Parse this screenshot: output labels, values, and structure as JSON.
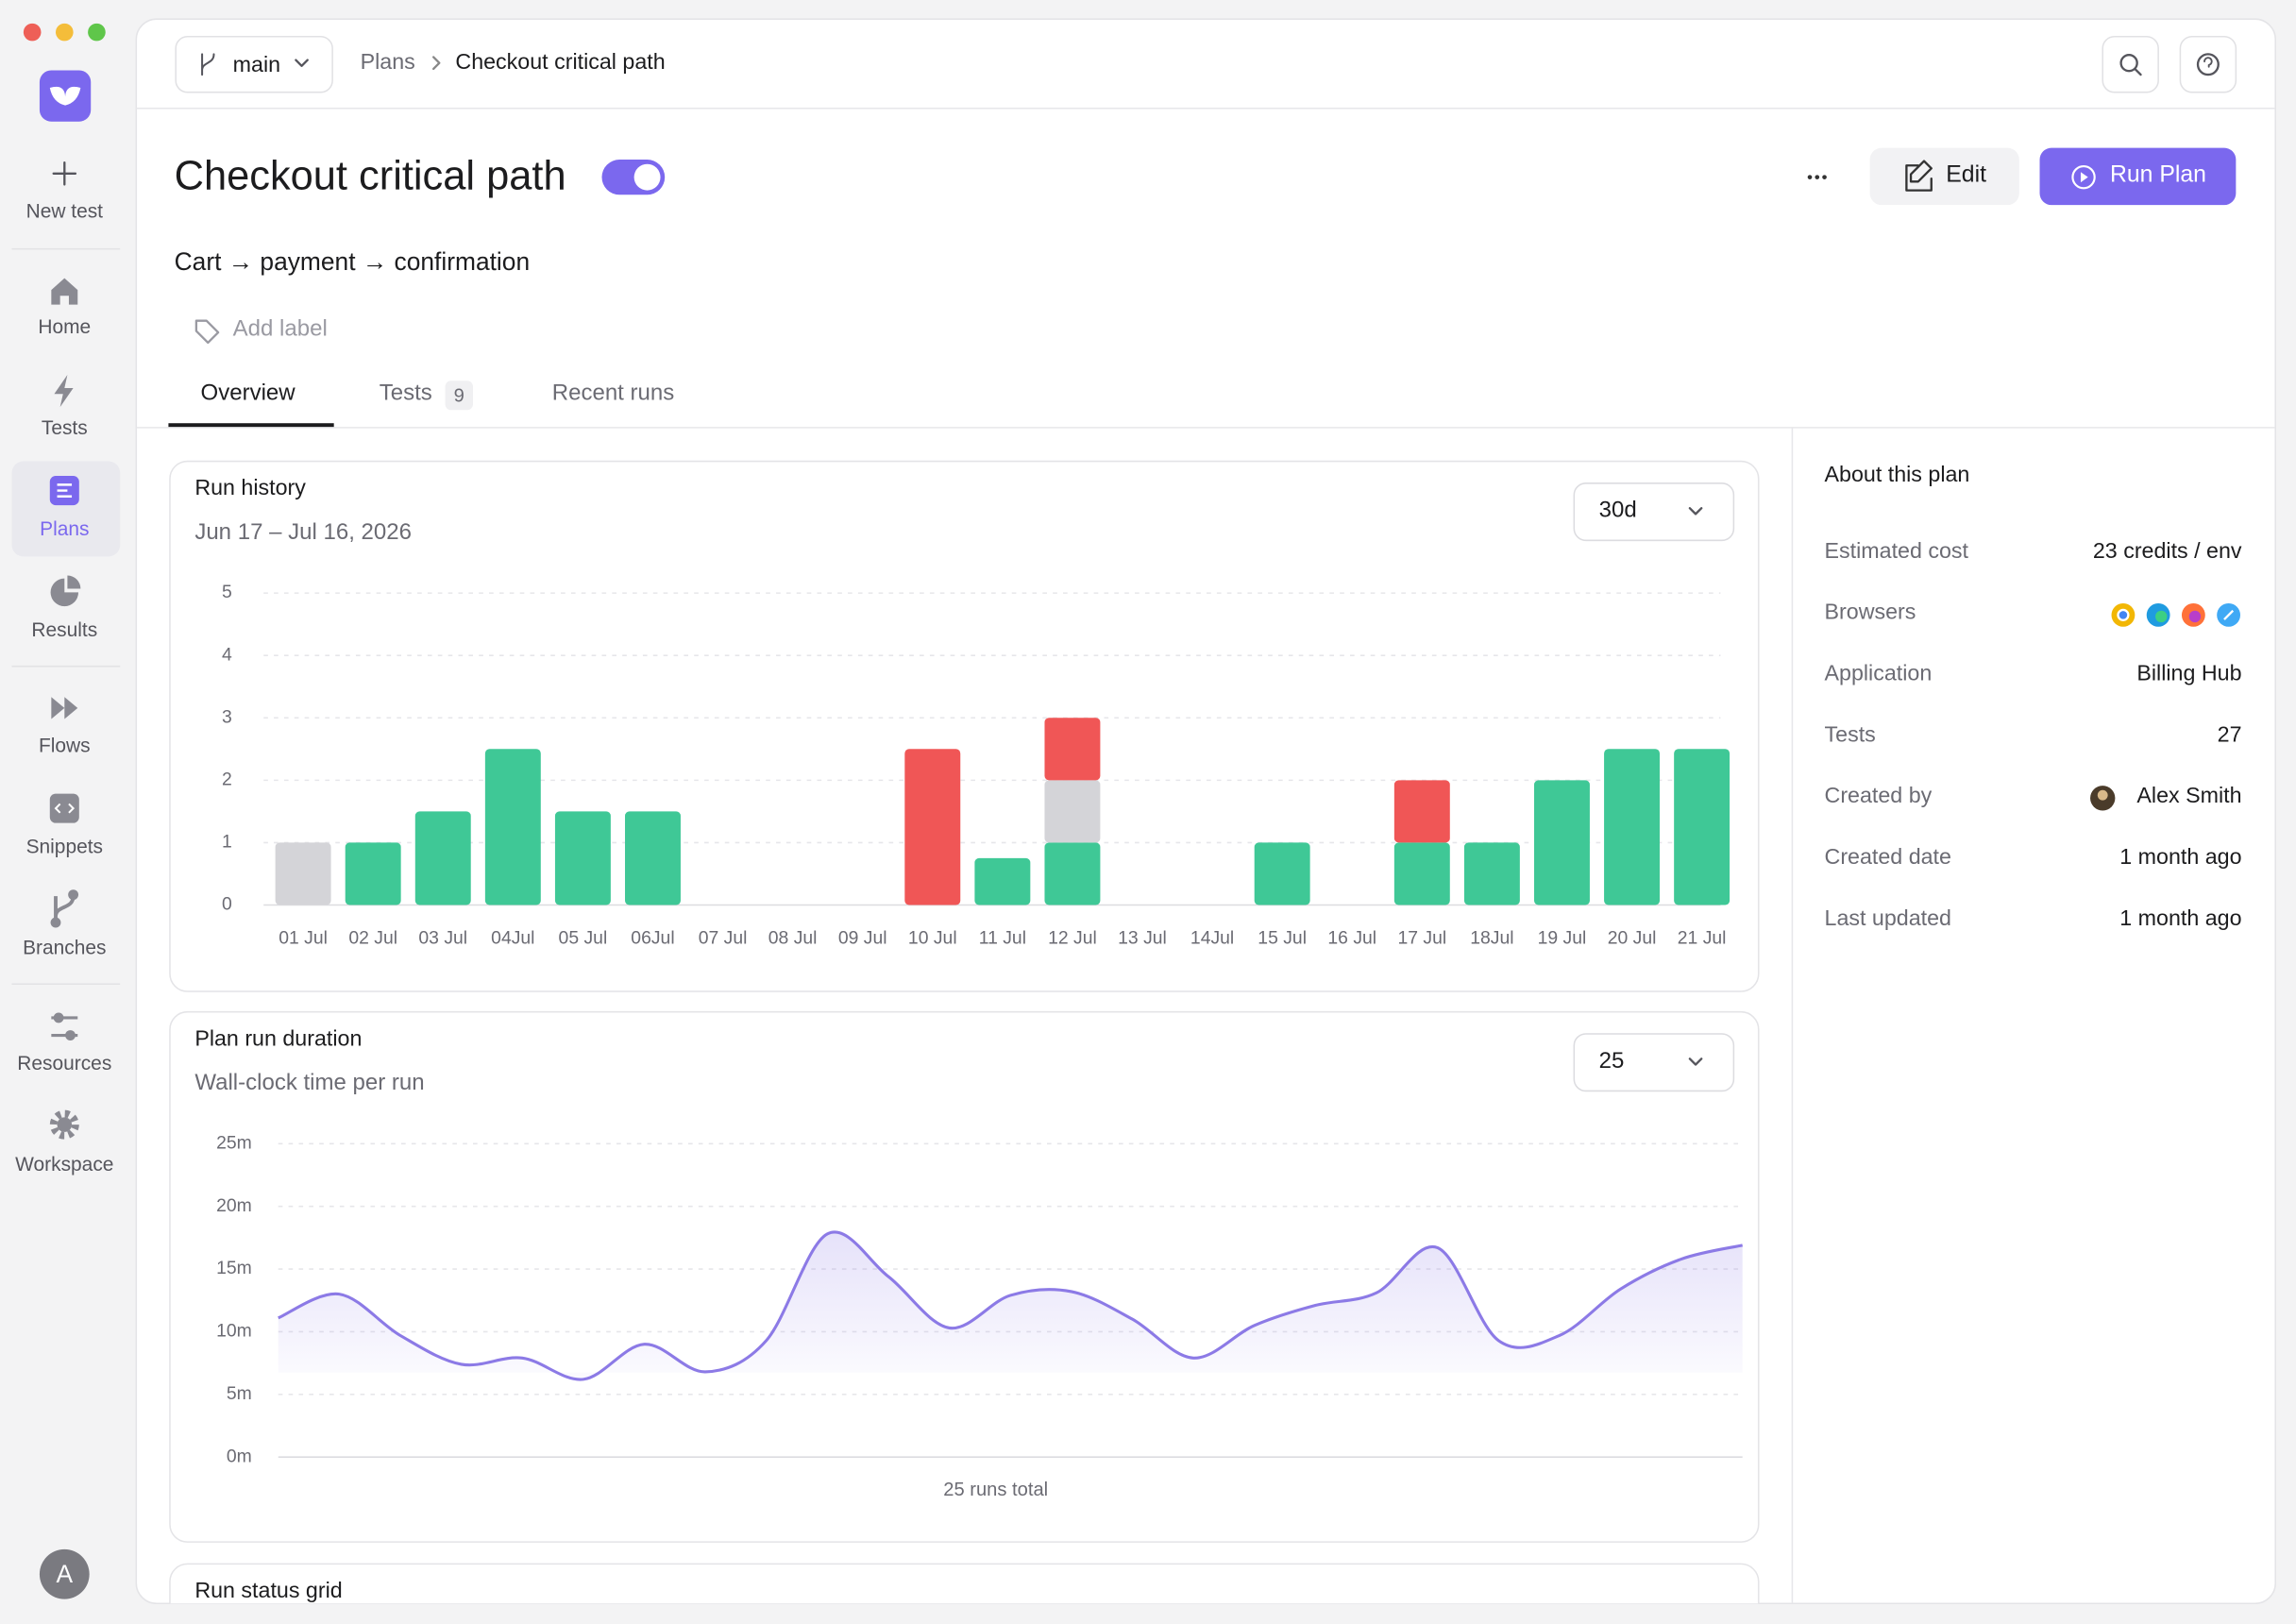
{
  "sidebar": {
    "items": [
      {
        "label": "New test"
      },
      {
        "label": "Home"
      },
      {
        "label": "Tests"
      },
      {
        "label": "Plans"
      },
      {
        "label": "Results"
      },
      {
        "label": "Flows"
      },
      {
        "label": "Snippets"
      },
      {
        "label": "Branches"
      },
      {
        "label": "Resources"
      },
      {
        "label": "Workspace"
      }
    ],
    "avatar": "A"
  },
  "topbar": {
    "branch": "main",
    "breadcrumb": [
      "Plans",
      "Checkout critical path"
    ]
  },
  "header": {
    "title": "Checkout critical path",
    "description": "Cart → payment → confirmation",
    "add_label": "Add label",
    "edit": "Edit",
    "run": "Run Plan"
  },
  "tabs": [
    {
      "label": "Overview"
    },
    {
      "label": "Tests",
      "count": 9
    },
    {
      "label": "Recent runs"
    }
  ],
  "about": {
    "title": "About this plan",
    "rows": [
      {
        "label": "Estimated cost",
        "value": "23 credits / env"
      },
      {
        "label": "Browsers"
      },
      {
        "label": "Application",
        "value": "Billing Hub"
      },
      {
        "label": "Tests",
        "value": "27"
      },
      {
        "label": "Created by",
        "value": "Alex Smith"
      },
      {
        "label": "Created date",
        "value": "1 month ago"
      },
      {
        "label": "Last updated",
        "value": "1 month ago"
      }
    ]
  },
  "chart_data": [
    {
      "type": "bar",
      "title": "Run history",
      "subtitle": "Jun 17 – Jul 16, 2026",
      "range": "30d",
      "stacked": true,
      "grid": true,
      "categories": [
        "01 Jul",
        "02 Jul",
        "03 Jul",
        "04Jul",
        "05 Jul",
        "06Jul",
        "07 Jul",
        "08 Jul",
        "09 Jul",
        "10 Jul",
        "11 Jul",
        "12 Jul",
        "13 Jul",
        "14Jul",
        "15 Jul",
        "16 Jul",
        "17 Jul",
        "18Jul",
        "19 Jul",
        "20 Jul",
        "21 Jul"
      ],
      "series": [
        {
          "color": "#3fc896",
          "values": [
            0,
            1,
            1.5,
            2.5,
            1.5,
            1.5,
            0,
            0,
            0,
            0,
            0.75,
            1,
            0,
            0,
            1,
            0,
            1,
            1,
            2,
            2.5,
            2.5
          ]
        },
        {
          "color": "#d4d4d8",
          "values": [
            1,
            0,
            0,
            0,
            0,
            0,
            0,
            0,
            0,
            0,
            0,
            1,
            0,
            0,
            0,
            0,
            0,
            0,
            0,
            0,
            0
          ]
        },
        {
          "color": "#f05656",
          "values": [
            0,
            0,
            0,
            0,
            0,
            0,
            0,
            0,
            0,
            2.5,
            0,
            1,
            0,
            0,
            0,
            0,
            1,
            0,
            0,
            0,
            0
          ]
        }
      ],
      "ylim": [
        0,
        5
      ],
      "yticks": [
        0,
        1,
        2,
        3,
        4,
        5
      ]
    },
    {
      "type": "line",
      "title": "Plan run duration",
      "subtitle": "Wall-clock time per run",
      "range": "25",
      "caption": "25 runs total",
      "grid": true,
      "color": "#8c7ae6",
      "values": [
        11.1,
        13,
        9.7,
        7.4,
        7.9,
        6.2,
        9,
        6.8,
        9.3,
        17.8,
        14.4,
        10.3,
        12.9,
        13.2,
        11,
        7.9,
        10.5,
        12.1,
        13.1,
        16.7,
        9.3,
        9.7,
        13.4,
        15.8,
        16.9
      ],
      "ylim": [
        0,
        25
      ],
      "yticks": [
        {
          "value": 0,
          "label": "0m"
        },
        {
          "value": 5,
          "label": "5m"
        },
        {
          "value": 10,
          "label": "10m"
        },
        {
          "value": 15,
          "label": "15m"
        },
        {
          "value": 20,
          "label": "20m"
        },
        {
          "value": 25,
          "label": "25m"
        }
      ]
    }
  ],
  "run_status_grid": {
    "title": "Run status grid"
  }
}
